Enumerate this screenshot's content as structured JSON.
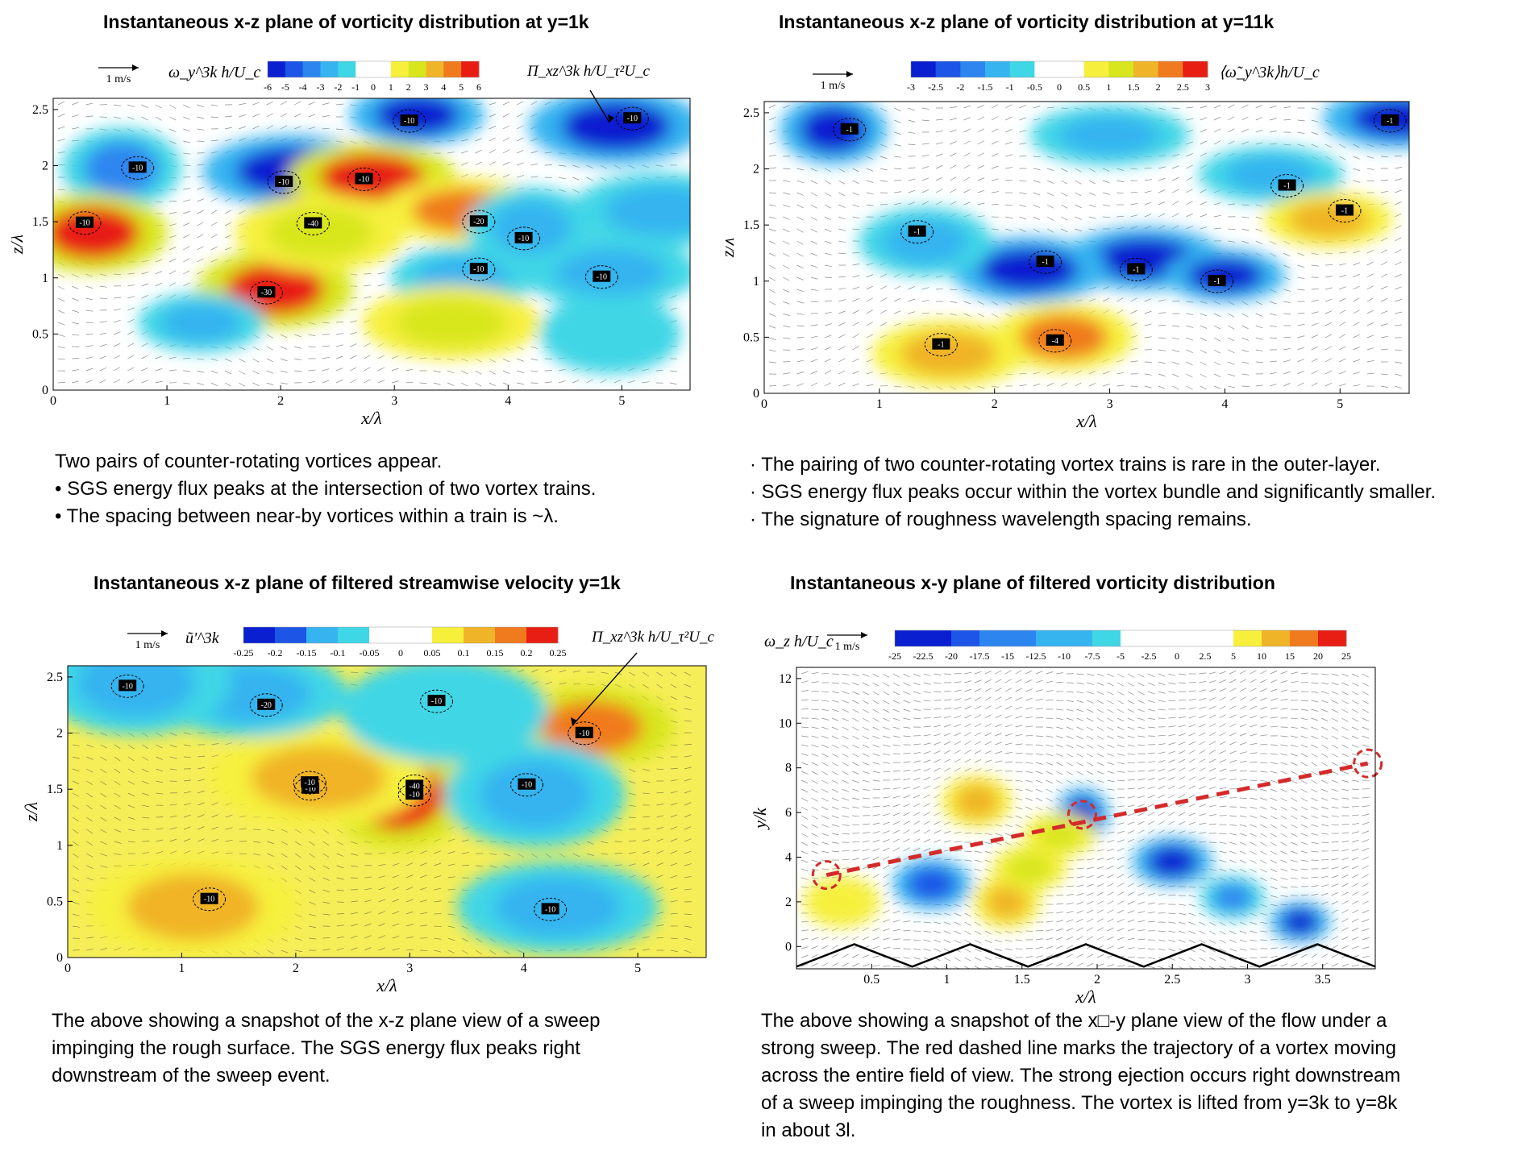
{
  "panels": [
    {
      "title": "Instantaneous x-z plane of vorticity distribution at y=1k",
      "scale_label": "1 m/s",
      "colorbar_label": "ω_y^3k h/U_c",
      "colorbar_ticks": [
        "-6",
        "-5",
        "-4",
        "-3",
        "-2",
        "-1",
        "0",
        "1",
        "2",
        "3",
        "4",
        "5",
        "6"
      ],
      "annotation": "Π_xz^3k h/U_τ²U_c",
      "contour_labels": [
        "-10",
        "-10",
        "-10",
        "-10",
        "-10",
        "-10",
        "-20",
        "-30",
        "-40",
        "-10",
        "-10",
        "-10"
      ],
      "xlabel": "x/λ",
      "ylabel": "z/λ",
      "xticks": [
        "0",
        "1",
        "2",
        "3",
        "4",
        "5"
      ],
      "yticks": [
        "0",
        "0.5",
        "1",
        "1.5",
        "2",
        "2.5"
      ],
      "caption": [
        "Two pairs of counter-rotating vortices appear.",
        "• SGS energy flux peaks at the intersection of two vortex trains.",
        "• The spacing between near-by vortices within a train is ~λ."
      ]
    },
    {
      "title": "Instantaneous x-z plane of vorticity distribution at y=11k",
      "scale_label": "1 m/s",
      "colorbar_label": "⟨ω̃_y^3k⟩h/U_c",
      "colorbar_ticks": [
        "-3",
        "-2.5",
        "-2",
        "-1.5",
        "-1",
        "-0.5",
        "0",
        "0.5",
        "1",
        "1.5",
        "2",
        "2.5",
        "3"
      ],
      "contour_labels": [
        "-1",
        "-1",
        "-1",
        "-1",
        "-1",
        "-1",
        "-1",
        "-4",
        "-1",
        "-1"
      ],
      "xlabel": "x/λ",
      "ylabel": "z/λ",
      "xticks": [
        "0",
        "1",
        "2",
        "3",
        "4",
        "5"
      ],
      "yticks": [
        "0",
        "0.5",
        "1",
        "1.5",
        "2",
        "2.5"
      ],
      "caption": [
        "· The pairing of two counter-rotating vortex trains is rare in the outer-layer.",
        "· SGS energy flux peaks occur within the vortex bundle and significantly smaller.",
        "· The signature of roughness wavelength spacing remains."
      ]
    },
    {
      "title": "Instantaneous x-z plane of filtered streamwise velocity y=1k",
      "scale_label": "1 m/s",
      "colorbar_label": "ũ'^3k",
      "colorbar_ticks": [
        "-0.25",
        "-0.2",
        "-0.15",
        "-0.1",
        "-0.05",
        "0",
        "0.05",
        "0.1",
        "0.15",
        "0.2",
        "0.25"
      ],
      "annotation": "Π_xz^3k h/U_τ²U_c",
      "contour_labels": [
        "-10",
        "-10",
        "-10",
        "-10",
        "-10",
        "-10",
        "-20",
        "-10",
        "-10",
        "-40",
        "-10"
      ],
      "xlabel": "x/λ",
      "ylabel": "z/λ",
      "xticks": [
        "0",
        "1",
        "2",
        "3",
        "4",
        "5"
      ],
      "yticks": [
        "0",
        "0.5",
        "1",
        "1.5",
        "2",
        "2.5"
      ],
      "caption": [
        "The above showing a snapshot of the x-z plane view of a sweep impinging the rough surface. The SGS energy flux peaks right downstream of the sweep event."
      ]
    },
    {
      "title": "Instantaneous x-y plane of filtered vorticity distribution",
      "scale_label": "1 m/s",
      "colorbar_label": "ω_z h/U_c",
      "colorbar_ticks": [
        "-25",
        "-22.5",
        "-20",
        "-17.5",
        "-15",
        "-12.5",
        "-10",
        "-7.5",
        "-5",
        "-2.5",
        "0",
        "2.5",
        "5",
        "10",
        "15",
        "20",
        "25"
      ],
      "xlabel": "x/λ",
      "ylabel": "y/k",
      "xticks": [
        "0.5",
        "1",
        "1.5",
        "2",
        "2.5",
        "3",
        "3.5"
      ],
      "yticks": [
        "0",
        "2",
        "4",
        "6",
        "8",
        "10",
        "12"
      ],
      "caption": [
        "The above showing a snapshot of the x□-y plane view of the flow under a strong sweep. The red dashed line marks the trajectory of a vortex moving across the entire field of view. The strong ejection occurs right downstream of a sweep impinging the roughness. The vortex is lifted from y=3k to y=8k in about 3l."
      ]
    }
  ],
  "chart_data": [
    {
      "type": "heatmap",
      "title": "Instantaneous x-z plane of vorticity distribution at y=1k",
      "xlabel": "x/λ",
      "ylabel": "z/λ",
      "xlim": [
        0,
        5.6
      ],
      "ylim": [
        0,
        2.6
      ],
      "colorbar": {
        "label": "ω_y^3k h/U_c",
        "range": [
          -6,
          6
        ]
      },
      "blobs": [
        {
          "x": 0.6,
          "y": 1.98,
          "value": -4
        },
        {
          "x": 2.1,
          "y": 1.95,
          "value": -5
        },
        {
          "x": 3.2,
          "y": 2.45,
          "value": -5
        },
        {
          "x": 4.95,
          "y": 2.35,
          "value": -6
        },
        {
          "x": 0.35,
          "y": 1.4,
          "value": 5
        },
        {
          "x": 2.8,
          "y": 1.9,
          "value": 5
        },
        {
          "x": 3.6,
          "y": 1.6,
          "value": 4
        },
        {
          "x": 1.95,
          "y": 0.9,
          "value": 6
        },
        {
          "x": 2.35,
          "y": 1.4,
          "value": 2
        },
        {
          "x": 3.6,
          "y": 1.0,
          "value": -3
        },
        {
          "x": 4.9,
          "y": 1.05,
          "value": -3
        },
        {
          "x": 4.2,
          "y": 1.45,
          "value": -3
        },
        {
          "x": 5.35,
          "y": 1.6,
          "value": -3
        },
        {
          "x": 1.3,
          "y": 0.6,
          "value": -3
        },
        {
          "x": 3.5,
          "y": 0.6,
          "value": 2
        },
        {
          "x": 4.9,
          "y": 0.5,
          "value": -2
        }
      ]
    },
    {
      "type": "heatmap",
      "title": "Instantaneous x-z plane of vorticity distribution at y=11k",
      "xlabel": "x/λ",
      "ylabel": "z/λ",
      "xlim": [
        0,
        5.6
      ],
      "ylim": [
        0,
        2.6
      ],
      "colorbar": {
        "label": "⟨ω̃_y^3k⟩h/U_c",
        "range": [
          -3,
          3
        ]
      },
      "blobs": [
        {
          "x": 0.6,
          "y": 2.35,
          "value": -2.5
        },
        {
          "x": 3.3,
          "y": 1.2,
          "value": -3
        },
        {
          "x": 4.0,
          "y": 1.05,
          "value": -2.5
        },
        {
          "x": 2.3,
          "y": 1.1,
          "value": -2.5
        },
        {
          "x": 1.4,
          "y": 1.35,
          "value": -1.5
        },
        {
          "x": 5.5,
          "y": 2.45,
          "value": -3
        },
        {
          "x": 4.4,
          "y": 1.95,
          "value": -1.5
        },
        {
          "x": 2.6,
          "y": 0.5,
          "value": 2
        },
        {
          "x": 1.6,
          "y": 0.35,
          "value": 1.5
        },
        {
          "x": 4.9,
          "y": 1.55,
          "value": 1.5
        },
        {
          "x": 3.0,
          "y": 2.3,
          "value": -1.5
        }
      ]
    },
    {
      "type": "heatmap",
      "title": "Instantaneous x-z plane of filtered streamwise velocity y=1k",
      "xlabel": "x/λ",
      "ylabel": "z/λ",
      "xlim": [
        0,
        5.6
      ],
      "ylim": [
        0,
        2.6
      ],
      "colorbar": {
        "label": "ũ'^3k",
        "range": [
          -0.25,
          0.25
        ]
      },
      "blobs": [
        {
          "x": 2.9,
          "y": 1.45,
          "value": 0.25
        },
        {
          "x": 2.2,
          "y": 1.6,
          "value": 0.15
        },
        {
          "x": 4.6,
          "y": 2.05,
          "value": 0.2
        },
        {
          "x": 1.1,
          "y": 0.45,
          "value": 0.15
        },
        {
          "x": 4.1,
          "y": 1.45,
          "value": -0.1
        },
        {
          "x": 4.3,
          "y": 0.45,
          "value": -0.1
        },
        {
          "x": 1.6,
          "y": 2.35,
          "value": -0.1
        },
        {
          "x": 0.6,
          "y": 2.45,
          "value": -0.1
        },
        {
          "x": 3.3,
          "y": 2.2,
          "value": -0.05
        }
      ]
    },
    {
      "type": "heatmap",
      "title": "Instantaneous x-y plane of filtered vorticity distribution",
      "xlabel": "x/λ",
      "ylabel": "y/k",
      "xlim": [
        0,
        3.85
      ],
      "ylim": [
        -1,
        12.5
      ],
      "colorbar": {
        "label": "ω_z h/U_c",
        "range": [
          -25,
          25
        ]
      },
      "trajectory": [
        {
          "x": 0.2,
          "y": 3.2
        },
        {
          "x": 3.8,
          "y": 8.2
        }
      ],
      "blobs": [
        {
          "x": 1.9,
          "y": 5.9,
          "value": -25
        },
        {
          "x": 2.5,
          "y": 3.8,
          "value": -22.5
        },
        {
          "x": 3.35,
          "y": 1.1,
          "value": -25
        },
        {
          "x": 0.9,
          "y": 2.8,
          "value": -20
        },
        {
          "x": 1.4,
          "y": 2.0,
          "value": 15
        },
        {
          "x": 1.55,
          "y": 3.5,
          "value": 10
        },
        {
          "x": 1.75,
          "y": 5.0,
          "value": 10
        },
        {
          "x": 1.2,
          "y": 6.5,
          "value": 15
        },
        {
          "x": 0.3,
          "y": 2.0,
          "value": 5
        },
        {
          "x": 2.9,
          "y": 2.2,
          "value": -15
        }
      ]
    }
  ]
}
